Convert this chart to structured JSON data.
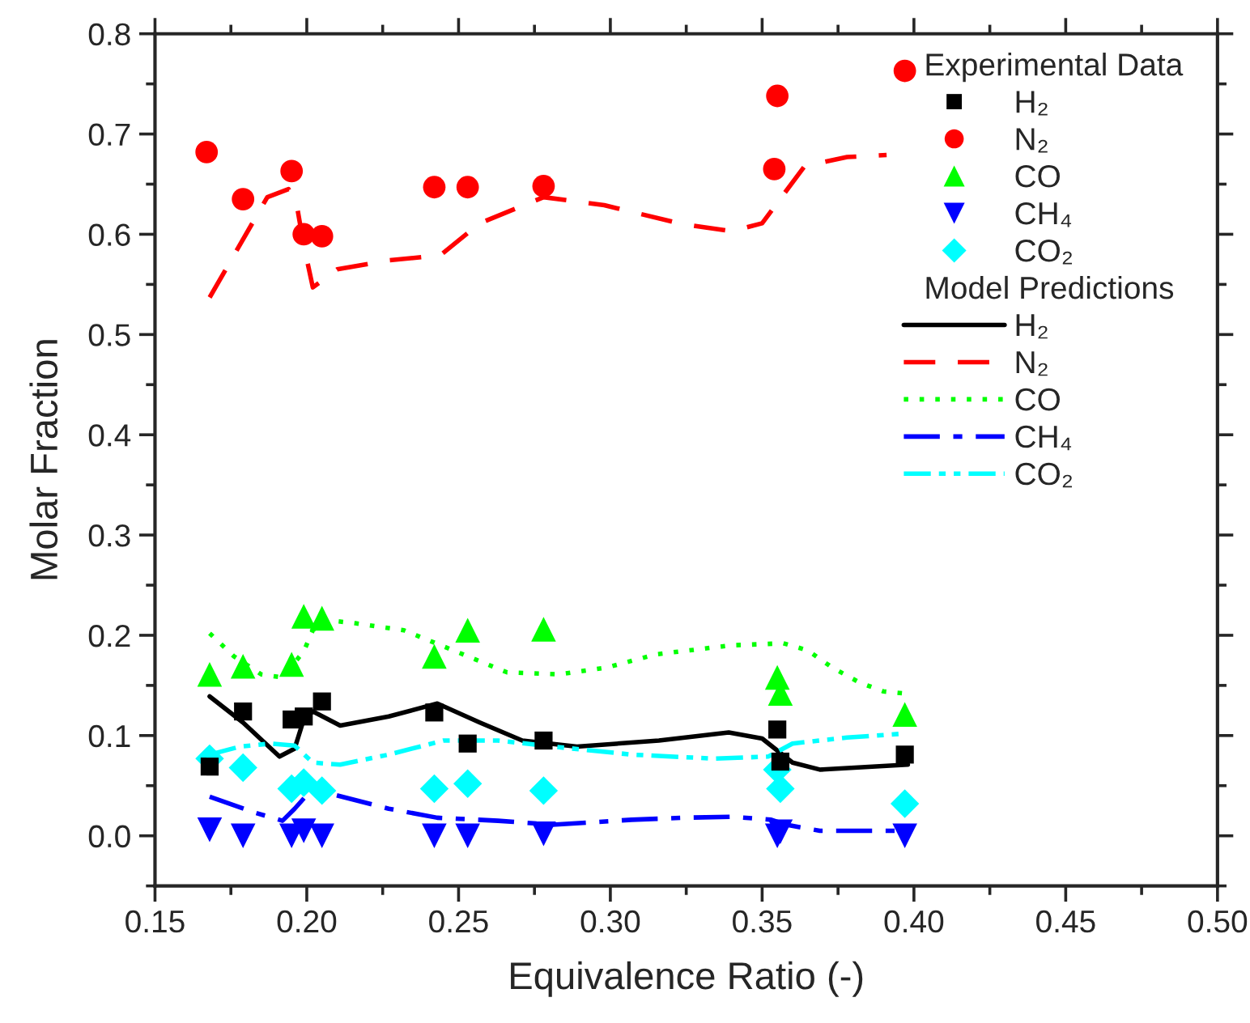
{
  "chart_data": {
    "type": "scatter",
    "xlabel": "Equivalence Ratio (-)",
    "ylabel": "Molar Fraction",
    "legend_title": [
      "Experimental Data",
      "Model Predictions"
    ],
    "legend": "top right",
    "grid": false,
    "xlim": [
      0.15,
      0.5
    ],
    "ylim": [
      -0.05,
      0.8
    ],
    "xticks": [
      {
        "value": 0.15,
        "label": "0.15"
      },
      {
        "value": 0.2,
        "label": "0.20"
      },
      {
        "value": 0.25,
        "label": "0.25"
      },
      {
        "value": 0.3,
        "label": "0.30"
      },
      {
        "value": 0.35,
        "label": "0.35"
      },
      {
        "value": 0.4,
        "label": "0.40"
      },
      {
        "value": 0.45,
        "label": "0.45"
      },
      {
        "value": 0.5,
        "label": "0.50"
      }
    ],
    "yticks": [
      {
        "value": 0.0,
        "label": "0.0"
      },
      0.1,
      0.2,
      0.3,
      0.4,
      0.5,
      0.6,
      0.7,
      0.8
    ],
    "series": [
      {
        "name": "H₂",
        "color": "#000000",
        "marker": "square",
        "x": [
          0.168,
          0.179,
          0.195,
          0.199,
          0.205,
          0.242,
          0.253,
          0.278,
          0.355,
          0.356,
          0.397
        ],
        "values": [
          0.069,
          0.124,
          0.116,
          0.119,
          0.134,
          0.123,
          0.092,
          0.095,
          0.106,
          0.074,
          0.081
        ]
      },
      {
        "name": "N₂",
        "color": "#ff0000",
        "marker": "circle",
        "x": [
          0.167,
          0.179,
          0.195,
          0.199,
          0.205,
          0.242,
          0.253,
          0.278,
          0.355,
          0.354,
          0.397
        ],
        "values": [
          0.682,
          0.635,
          0.663,
          0.6,
          0.598,
          0.647,
          0.647,
          0.648,
          0.738,
          0.665,
          0.763
        ]
      },
      {
        "name": "CO",
        "color": "#00ff00",
        "marker": "triangle",
        "x": [
          0.168,
          0.179,
          0.195,
          0.199,
          0.205,
          0.242,
          0.253,
          0.278,
          0.355,
          0.356,
          0.397
        ],
        "values": [
          0.161,
          0.169,
          0.171,
          0.219,
          0.217,
          0.179,
          0.205,
          0.206,
          0.158,
          0.142,
          0.121
        ]
      },
      {
        "name": "CH₄",
        "color": "#0000ff",
        "marker": "triangle_down",
        "x": [
          0.168,
          0.179,
          0.195,
          0.199,
          0.205,
          0.242,
          0.253,
          0.278,
          0.355,
          0.356,
          0.397
        ],
        "values": [
          0.006,
          0.0,
          0.0,
          0.005,
          0.0,
          0.0,
          0.0,
          0.002,
          0.0,
          0.004,
          0.0
        ]
      },
      {
        "name": "CO₂",
        "color": "#00ffff",
        "marker": "diamond",
        "x": [
          0.168,
          0.179,
          0.195,
          0.199,
          0.205,
          0.242,
          0.253,
          0.278,
          0.355,
          0.356,
          0.397
        ],
        "values": [
          0.077,
          0.068,
          0.047,
          0.053,
          0.045,
          0.047,
          0.052,
          0.045,
          0.066,
          0.047,
          0.032
        ]
      },
      {
        "type": "line",
        "name": "H₂",
        "color": "#000000",
        "line_style": "solid",
        "x": [
          0.168,
          0.179,
          0.191,
          0.196,
          0.199,
          0.202,
          0.211,
          0.227,
          0.243,
          0.257,
          0.271,
          0.289,
          0.316,
          0.339,
          0.35,
          0.36,
          0.369,
          0.398
        ],
        "values": [
          0.139,
          0.113,
          0.079,
          0.087,
          0.116,
          0.124,
          0.11,
          0.119,
          0.132,
          0.113,
          0.095,
          0.089,
          0.095,
          0.103,
          0.097,
          0.073,
          0.066,
          0.071
        ]
      },
      {
        "type": "line",
        "name": "N₂",
        "color": "#ff0000",
        "line_style": "dashed",
        "x": [
          0.168,
          0.187,
          0.194,
          0.197,
          0.199,
          0.202,
          0.21,
          0.227,
          0.244,
          0.257,
          0.278,
          0.298,
          0.324,
          0.34,
          0.35,
          0.364,
          0.378,
          0.391
        ],
        "values": [
          0.537,
          0.637,
          0.645,
          0.624,
          0.589,
          0.547,
          0.565,
          0.574,
          0.579,
          0.611,
          0.637,
          0.629,
          0.61,
          0.603,
          0.611,
          0.668,
          0.677,
          0.679
        ]
      },
      {
        "type": "line",
        "name": "CO",
        "color": "#00ff00",
        "line_style": "dotted",
        "x": [
          0.168,
          0.176,
          0.185,
          0.192,
          0.199,
          0.202,
          0.207,
          0.216,
          0.232,
          0.249,
          0.266,
          0.283,
          0.299,
          0.315,
          0.34,
          0.357,
          0.365,
          0.373,
          0.382,
          0.39,
          0.397
        ],
        "values": [
          0.202,
          0.179,
          0.161,
          0.158,
          0.184,
          0.205,
          0.215,
          0.212,
          0.205,
          0.184,
          0.163,
          0.161,
          0.168,
          0.181,
          0.19,
          0.192,
          0.185,
          0.168,
          0.153,
          0.144,
          0.142
        ]
      },
      {
        "type": "line",
        "name": "CH₄",
        "color": "#0000ff",
        "line_style": "dashdot",
        "x": [
          0.168,
          0.183,
          0.192,
          0.196,
          0.201,
          0.209,
          0.227,
          0.243,
          0.263,
          0.281,
          0.307,
          0.324,
          0.34,
          0.353,
          0.358,
          0.369,
          0.397
        ],
        "values": [
          0.039,
          0.023,
          0.015,
          0.027,
          0.044,
          0.041,
          0.027,
          0.018,
          0.015,
          0.011,
          0.016,
          0.018,
          0.019,
          0.016,
          0.011,
          0.005,
          0.005
        ]
      },
      {
        "type": "line",
        "name": "CO₂",
        "color": "#00ffff",
        "line_style": "dashdotdot",
        "x": [
          0.168,
          0.178,
          0.188,
          0.196,
          0.202,
          0.211,
          0.227,
          0.245,
          0.263,
          0.281,
          0.307,
          0.334,
          0.352,
          0.36,
          0.378,
          0.397
        ],
        "values": [
          0.081,
          0.089,
          0.092,
          0.09,
          0.073,
          0.071,
          0.081,
          0.095,
          0.095,
          0.089,
          0.081,
          0.077,
          0.079,
          0.092,
          0.098,
          0.102
        ]
      }
    ]
  }
}
